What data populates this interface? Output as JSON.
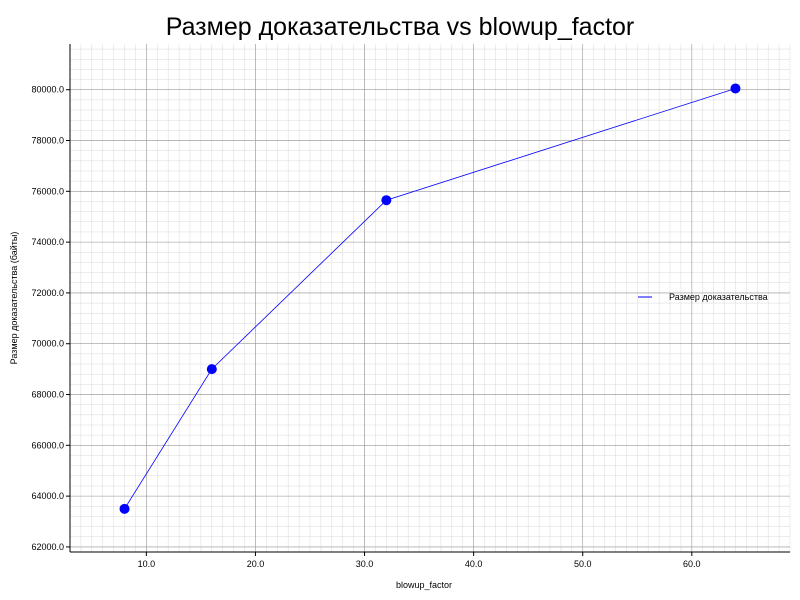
{
  "chart_data": {
    "type": "line",
    "title": "Размер доказательства vs blowup_factor",
    "xlabel": "blowup_factor",
    "ylabel": "Размер доказательства (байты)",
    "xlim": [
      3,
      69
    ],
    "ylim": [
      61800,
      81800
    ],
    "x_ticks": [
      10,
      20,
      30,
      40,
      50,
      60
    ],
    "x_tick_labels": [
      "10.0",
      "20.0",
      "30.0",
      "40.0",
      "50.0",
      "60.0"
    ],
    "y_ticks": [
      62000,
      64000,
      66000,
      68000,
      70000,
      72000,
      74000,
      76000,
      78000,
      80000
    ],
    "y_tick_labels": [
      "62000.0",
      "64000.0",
      "66000.0",
      "68000.0",
      "70000.0",
      "72000.0",
      "74000.0",
      "76000.0",
      "78000.0",
      "80000.0"
    ],
    "grid": true,
    "legend_position": "right",
    "series": [
      {
        "name": "Размер доказательства",
        "color": "#0000ff",
        "x": [
          8,
          16,
          32,
          64
        ],
        "values": [
          63500,
          69000,
          75650,
          80050
        ]
      }
    ]
  }
}
